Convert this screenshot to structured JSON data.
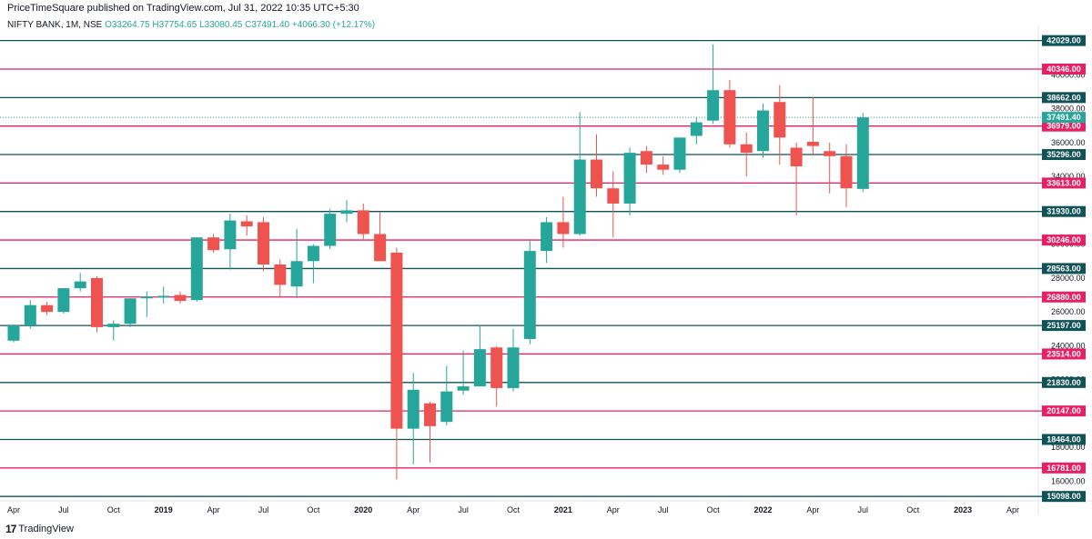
{
  "header": {
    "published_line": "PriceTimeSquare published on TradingView.com, Jul 31, 2022 10:35 UTC+5:30",
    "symbol": "NIFTY BANK, 1M, NSE",
    "open": "O33264.75",
    "high": "H37754.65",
    "low": "L33080.45",
    "close": "C37491.40",
    "change": "+4066.30 (+12.17%)"
  },
  "footer": {
    "brand": "TradingView",
    "logo": "17"
  },
  "colors": {
    "up": "#26a69a",
    "down": "#ef5350",
    "level_teal": "#0f5257",
    "level_red": "#e91e63",
    "last_price": "#26a69a"
  },
  "chart_data": {
    "type": "candlestick",
    "interval": "1M",
    "ylim": [
      15000,
      42600
    ],
    "last_price": 37491.4,
    "y_ticks": [
      16000,
      18000,
      20000,
      22000,
      24000,
      26000,
      28000,
      30000,
      32000,
      34000,
      36000,
      38000,
      40000
    ],
    "x_ticks": [
      {
        "label": "Apr",
        "index": 0,
        "bold": false
      },
      {
        "label": "Jul",
        "index": 3,
        "bold": false
      },
      {
        "label": "Oct",
        "index": 6,
        "bold": false
      },
      {
        "label": "2019",
        "index": 9,
        "bold": true
      },
      {
        "label": "Apr",
        "index": 12,
        "bold": false
      },
      {
        "label": "Jul",
        "index": 15,
        "bold": false
      },
      {
        "label": "Oct",
        "index": 18,
        "bold": false
      },
      {
        "label": "2020",
        "index": 21,
        "bold": true
      },
      {
        "label": "Apr",
        "index": 24,
        "bold": false
      },
      {
        "label": "Jul",
        "index": 27,
        "bold": false
      },
      {
        "label": "Oct",
        "index": 30,
        "bold": false
      },
      {
        "label": "2021",
        "index": 33,
        "bold": true
      },
      {
        "label": "Apr",
        "index": 36,
        "bold": false
      },
      {
        "label": "Jul",
        "index": 39,
        "bold": false
      },
      {
        "label": "Oct",
        "index": 42,
        "bold": false
      },
      {
        "label": "2022",
        "index": 45,
        "bold": true
      },
      {
        "label": "Apr",
        "index": 48,
        "bold": false
      },
      {
        "label": "Jul",
        "index": 51,
        "bold": false
      },
      {
        "label": "Oct",
        "index": 54,
        "bold": false
      },
      {
        "label": "2023",
        "index": 57,
        "bold": true
      },
      {
        "label": "Apr",
        "index": 60,
        "bold": false
      }
    ],
    "levels": [
      {
        "value": 42029.0,
        "label": "42029.00",
        "color": "teal"
      },
      {
        "value": 40346.0,
        "label": "40346.00",
        "color": "red"
      },
      {
        "value": 38662.0,
        "label": "38662.00",
        "color": "teal"
      },
      {
        "value": 36979.0,
        "label": "36979.00",
        "color": "red"
      },
      {
        "value": 35296.0,
        "label": "35296.00",
        "color": "teal"
      },
      {
        "value": 33613.0,
        "label": "33613.00",
        "color": "red"
      },
      {
        "value": 31930.0,
        "label": "31930.00",
        "color": "teal"
      },
      {
        "value": 30246.0,
        "label": "30246.00",
        "color": "red"
      },
      {
        "value": 28563.0,
        "label": "28563.00",
        "color": "teal"
      },
      {
        "value": 26880.0,
        "label": "26880.00",
        "color": "red"
      },
      {
        "value": 25197.0,
        "label": "25197.00",
        "color": "teal"
      },
      {
        "value": 23514.0,
        "label": "23514.00",
        "color": "red"
      },
      {
        "value": 21830.0,
        "label": "21830.00",
        "color": "teal"
      },
      {
        "value": 20147.0,
        "label": "20147.00",
        "color": "red"
      },
      {
        "value": 18464.0,
        "label": "18464.00",
        "color": "teal"
      },
      {
        "value": 16781.0,
        "label": "16781.00",
        "color": "red"
      },
      {
        "value": 15098.0,
        "label": "15098.00",
        "color": "teal"
      }
    ],
    "candles": [
      {
        "month": "2018-04",
        "o": 24300,
        "h": 25250,
        "l": 24200,
        "c": 25200
      },
      {
        "month": "2018-05",
        "o": 25200,
        "h": 26700,
        "l": 25000,
        "c": 26400
      },
      {
        "month": "2018-06",
        "o": 26400,
        "h": 26600,
        "l": 25800,
        "c": 26000
      },
      {
        "month": "2018-07",
        "o": 26000,
        "h": 27400,
        "l": 25900,
        "c": 27400
      },
      {
        "month": "2018-08",
        "o": 27400,
        "h": 28300,
        "l": 27200,
        "c": 27800
      },
      {
        "month": "2018-09",
        "o": 28000,
        "h": 28100,
        "l": 24800,
        "c": 25100
      },
      {
        "month": "2018-10",
        "o": 25100,
        "h": 25500,
        "l": 24300,
        "c": 25300
      },
      {
        "month": "2018-11",
        "o": 25300,
        "h": 26800,
        "l": 25100,
        "c": 26800
      },
      {
        "month": "2018-12",
        "o": 26800,
        "h": 27200,
        "l": 25700,
        "c": 26900
      },
      {
        "month": "2019-01",
        "o": 26850,
        "h": 27500,
        "l": 26500,
        "c": 26950
      },
      {
        "month": "2019-02",
        "o": 27000,
        "h": 27200,
        "l": 26500,
        "c": 26650
      },
      {
        "month": "2019-03",
        "o": 26700,
        "h": 30400,
        "l": 26600,
        "c": 30400
      },
      {
        "month": "2019-04",
        "o": 30400,
        "h": 30600,
        "l": 29500,
        "c": 29650
      },
      {
        "month": "2019-05",
        "o": 29700,
        "h": 31800,
        "l": 28500,
        "c": 31400
      },
      {
        "month": "2019-06",
        "o": 31350,
        "h": 31700,
        "l": 30500,
        "c": 31050
      },
      {
        "month": "2019-07",
        "o": 31300,
        "h": 31600,
        "l": 28400,
        "c": 28800
      },
      {
        "month": "2019-08",
        "o": 28800,
        "h": 29100,
        "l": 26900,
        "c": 27600
      },
      {
        "month": "2019-09",
        "o": 27500,
        "h": 30900,
        "l": 26800,
        "c": 29000
      },
      {
        "month": "2019-10",
        "o": 29000,
        "h": 30000,
        "l": 27700,
        "c": 29900
      },
      {
        "month": "2019-11",
        "o": 29900,
        "h": 32100,
        "l": 29700,
        "c": 31800
      },
      {
        "month": "2019-12",
        "o": 31800,
        "h": 32600,
        "l": 31300,
        "c": 32000
      },
      {
        "month": "2020-01",
        "o": 32000,
        "h": 32400,
        "l": 30300,
        "c": 30600
      },
      {
        "month": "2020-02",
        "o": 30600,
        "h": 31900,
        "l": 29000,
        "c": 29000
      },
      {
        "month": "2020-03",
        "o": 29500,
        "h": 29800,
        "l": 16100,
        "c": 19100
      },
      {
        "month": "2020-04",
        "o": 19100,
        "h": 22400,
        "l": 17000,
        "c": 21400
      },
      {
        "month": "2020-05",
        "o": 20600,
        "h": 20700,
        "l": 17100,
        "c": 19250
      },
      {
        "month": "2020-06",
        "o": 19500,
        "h": 22800,
        "l": 19300,
        "c": 21300
      },
      {
        "month": "2020-07",
        "o": 21350,
        "h": 23700,
        "l": 21100,
        "c": 21600
      },
      {
        "month": "2020-08",
        "o": 21600,
        "h": 25200,
        "l": 21600,
        "c": 23800
      },
      {
        "month": "2020-09",
        "o": 23900,
        "h": 24000,
        "l": 20400,
        "c": 21500
      },
      {
        "month": "2020-10",
        "o": 21500,
        "h": 25000,
        "l": 21300,
        "c": 23900
      },
      {
        "month": "2020-11",
        "o": 24400,
        "h": 30300,
        "l": 24100,
        "c": 29600
      },
      {
        "month": "2020-12",
        "o": 29600,
        "h": 31600,
        "l": 28900,
        "c": 31300
      },
      {
        "month": "2021-01",
        "o": 31300,
        "h": 32800,
        "l": 29800,
        "c": 30600
      },
      {
        "month": "2021-02",
        "o": 30600,
        "h": 37800,
        "l": 30500,
        "c": 35000
      },
      {
        "month": "2021-03",
        "o": 35000,
        "h": 36500,
        "l": 32800,
        "c": 33300
      },
      {
        "month": "2021-04",
        "o": 33300,
        "h": 34300,
        "l": 30400,
        "c": 32400
      },
      {
        "month": "2021-05",
        "o": 32400,
        "h": 35700,
        "l": 31700,
        "c": 35400
      },
      {
        "month": "2021-06",
        "o": 35500,
        "h": 35800,
        "l": 34200,
        "c": 34700
      },
      {
        "month": "2021-07",
        "o": 34700,
        "h": 35200,
        "l": 34100,
        "c": 34400
      },
      {
        "month": "2021-08",
        "o": 34400,
        "h": 36300,
        "l": 34200,
        "c": 36300
      },
      {
        "month": "2021-09",
        "o": 36400,
        "h": 37500,
        "l": 35900,
        "c": 37200
      },
      {
        "month": "2021-10",
        "o": 37300,
        "h": 41800,
        "l": 37100,
        "c": 39100
      },
      {
        "month": "2021-11",
        "o": 39100,
        "h": 39700,
        "l": 35700,
        "c": 35900
      },
      {
        "month": "2021-12",
        "o": 35900,
        "h": 36600,
        "l": 34000,
        "c": 35400
      },
      {
        "month": "2022-01",
        "o": 35500,
        "h": 38300,
        "l": 35100,
        "c": 37900
      },
      {
        "month": "2022-02",
        "o": 38400,
        "h": 39400,
        "l": 34700,
        "c": 36300
      },
      {
        "month": "2022-03",
        "o": 35700,
        "h": 36000,
        "l": 31700,
        "c": 34600
      },
      {
        "month": "2022-04",
        "o": 36050,
        "h": 38700,
        "l": 35300,
        "c": 35800
      },
      {
        "month": "2022-05",
        "o": 35500,
        "h": 36000,
        "l": 33000,
        "c": 35200
      },
      {
        "month": "2022-06",
        "o": 35200,
        "h": 35900,
        "l": 32200,
        "c": 33300
      },
      {
        "month": "2022-07",
        "o": 33264.75,
        "h": 37754.65,
        "l": 33080.45,
        "c": 37491.4
      }
    ]
  }
}
